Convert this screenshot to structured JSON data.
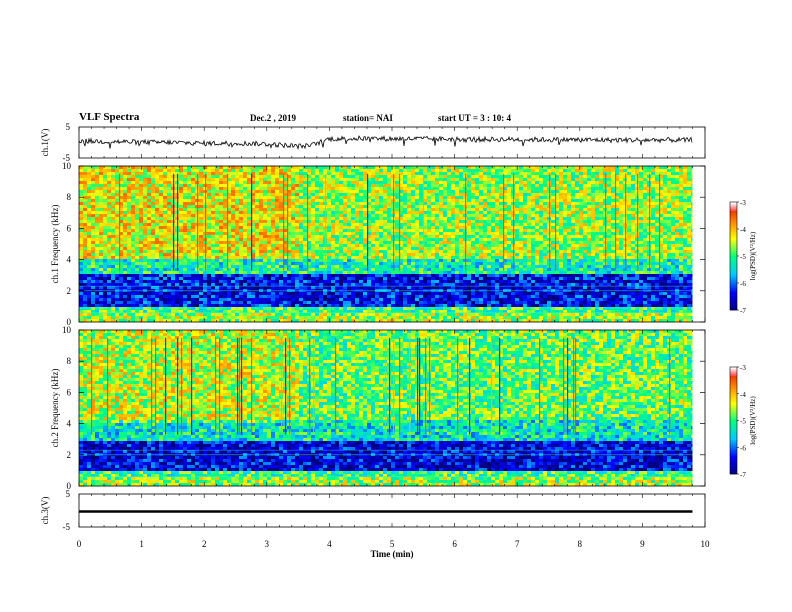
{
  "header": {
    "title": "VLF Spectra",
    "date": "Dec.2 , 2019",
    "station": "station= NAI",
    "start": "start UT = 3 : 10: 4"
  },
  "colors": {
    "colormap": [
      "#00007f",
      "#0000ff",
      "#00c8ff",
      "#00ff80",
      "#ffff00",
      "#ff7f00",
      "#e00000",
      "#ffffff"
    ],
    "trace": "#000000"
  },
  "chart_data": [
    {
      "type": "line",
      "panel": "ch1",
      "ylabel": "ch.1(V)",
      "ylim": [
        -5,
        5
      ],
      "yticks": [
        "5",
        "-5"
      ],
      "xlim": [
        0,
        10
      ],
      "x": [
        0,
        0.5,
        1,
        1.5,
        2,
        2.5,
        3,
        3.5,
        3.7,
        4,
        4.5,
        5,
        5.5,
        6,
        6.5,
        7,
        7.5,
        8,
        8.5,
        9,
        9.5,
        9.8
      ],
      "y": [
        0.5,
        0.3,
        0.1,
        0.0,
        -0.3,
        -0.2,
        -0.5,
        -1.2,
        -1.0,
        1.2,
        1.3,
        1.2,
        1.2,
        1.1,
        1.0,
        1.0,
        0.9,
        0.9,
        0.8,
        0.8,
        0.8,
        0.8
      ]
    },
    {
      "type": "heatmap",
      "panel": "ch1-spectrogram",
      "ylabel": "ch.1  Frequency (kHz)",
      "yticks": [
        "0",
        "2",
        "4",
        "6",
        "8",
        "10"
      ],
      "ylim": [
        0,
        10
      ],
      "xlim": [
        0,
        10
      ],
      "colorbar": {
        "label": "log(PSD)(V²/Hz)",
        "range": [
          -7,
          -3
        ],
        "ticks": [
          "-3",
          "-4",
          "-5",
          "-6",
          "-7"
        ]
      },
      "bands_khz": [
        {
          "range": [
            0,
            0.6
          ],
          "level": -4.6
        },
        {
          "range": [
            0.6,
            1.0
          ],
          "level": -5.0
        },
        {
          "range": [
            1.0,
            3.2
          ],
          "level": -6.4
        },
        {
          "range": [
            3.2,
            4.2
          ],
          "level": -5.2
        },
        {
          "range": [
            4.2,
            10
          ],
          "level": -4.6
        }
      ]
    },
    {
      "type": "heatmap",
      "panel": "ch2-spectrogram",
      "ylabel": "ch.2  Frequency (kHz)",
      "yticks": [
        "0",
        "2",
        "4",
        "6",
        "8",
        "10"
      ],
      "ylim": [
        0,
        10
      ],
      "xlim": [
        0,
        10
      ],
      "colorbar": {
        "label": "log(PSD)(V²/Hz)",
        "range": [
          -7,
          -3
        ],
        "ticks": [
          "-3",
          "-4",
          "-5",
          "-6",
          "-7"
        ]
      },
      "bands_khz": [
        {
          "range": [
            0,
            0.6
          ],
          "level": -4.6
        },
        {
          "range": [
            0.6,
            1.0
          ],
          "level": -5.0
        },
        {
          "range": [
            1.0,
            3.0
          ],
          "level": -6.5
        },
        {
          "range": [
            3.0,
            4.4
          ],
          "level": -5.3
        },
        {
          "range": [
            4.4,
            10
          ],
          "level": -4.8
        }
      ]
    },
    {
      "type": "line",
      "panel": "ch3",
      "ylabel": "ch.3(V)",
      "ylim": [
        -5,
        5
      ],
      "yticks": [
        "5",
        "-5"
      ],
      "xlim": [
        0,
        10
      ],
      "xlabel": "Time  (min)",
      "xticks": [
        "0",
        "1",
        "2",
        "3",
        "4",
        "5",
        "6",
        "7",
        "8",
        "9",
        "10"
      ],
      "x": [
        0,
        9.8
      ],
      "y": [
        0,
        0
      ]
    }
  ]
}
